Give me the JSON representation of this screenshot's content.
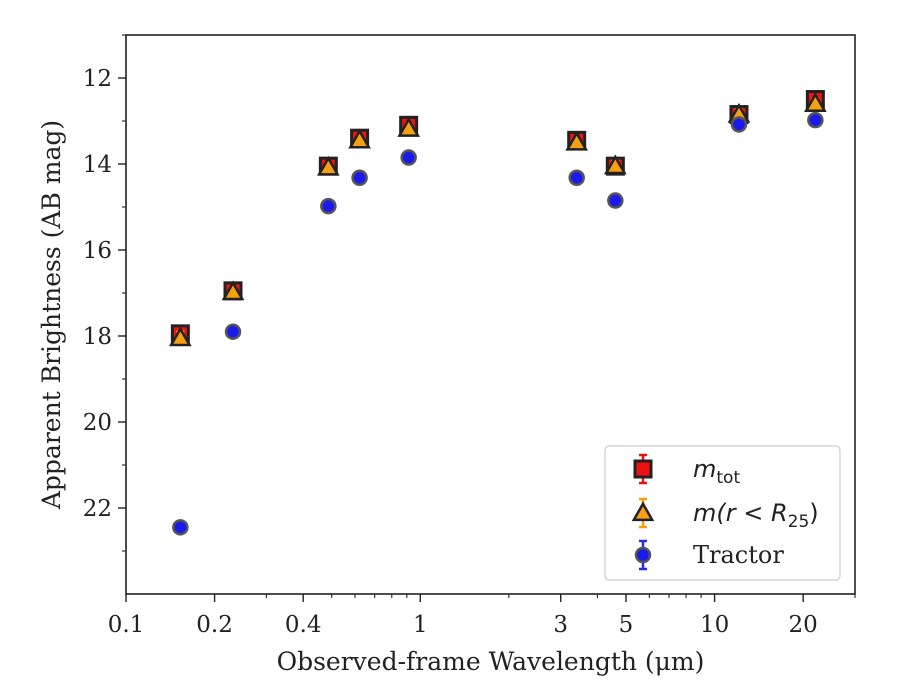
{
  "chart_data": {
    "type": "scatter",
    "xlabel": "Observed-frame Wavelength (μm)",
    "ylabel": "Apparent Brightness (AB mag)",
    "x_scale": "log",
    "y_inverted": true,
    "xlim": [
      0.1,
      30
    ],
    "ylim": [
      24,
      11
    ],
    "x_ticks": [
      {
        "value": 0.1,
        "label": "0.1"
      },
      {
        "value": 0.2,
        "label": "0.2"
      },
      {
        "value": 0.4,
        "label": "0.4"
      },
      {
        "value": 1,
        "label": "1"
      },
      {
        "value": 3,
        "label": "3"
      },
      {
        "value": 5,
        "label": "5"
      },
      {
        "value": 10,
        "label": "10"
      },
      {
        "value": 20,
        "label": "20"
      }
    ],
    "x_minor_ticks": [
      0.3,
      0.5,
      0.6,
      0.7,
      0.8,
      0.9,
      2,
      4,
      6,
      7,
      8,
      9,
      30
    ],
    "y_ticks": [
      {
        "value": 12,
        "label": "12"
      },
      {
        "value": 14,
        "label": "14"
      },
      {
        "value": 16,
        "label": "16"
      },
      {
        "value": 18,
        "label": "18"
      },
      {
        "value": 20,
        "label": "20"
      },
      {
        "value": 22,
        "label": "22"
      }
    ],
    "grid": false,
    "legend_position": "lower-right",
    "series": [
      {
        "name": "m_tot",
        "legend_main": "m",
        "legend_sub": "tot",
        "legend_rest": "",
        "marker": "square",
        "face_color": "#ee1111",
        "edge_color": "#222222",
        "error_color": "#ee1111",
        "x": [
          0.153,
          0.231,
          0.487,
          0.622,
          0.913,
          3.4,
          4.6,
          12.1,
          22.0
        ],
        "y": [
          17.95,
          16.95,
          14.05,
          13.4,
          13.1,
          13.45,
          14.05,
          12.85,
          12.5
        ],
        "yerr": [
          0.15,
          0.1,
          0.1,
          0.1,
          0.1,
          0.1,
          0.12,
          0.12,
          0.12
        ]
      },
      {
        "name": "m(r < R_25)",
        "legend_main": "m(r < R",
        "legend_sub": "25",
        "legend_rest": ")",
        "marker": "triangle",
        "face_color": "#f5a011",
        "edge_color": "#222222",
        "error_color": "#f5a011",
        "x": [
          0.153,
          0.231,
          0.487,
          0.622,
          0.913,
          3.4,
          4.6,
          12.1,
          22.0
        ],
        "y": [
          18.05,
          16.98,
          14.08,
          13.45,
          13.18,
          13.5,
          14.05,
          12.85,
          12.6
        ],
        "yerr": [
          0.15,
          0.1,
          0.1,
          0.1,
          0.1,
          0.1,
          0.12,
          0.12,
          0.12
        ]
      },
      {
        "name": "Tractor",
        "legend_main": "Tractor",
        "legend_sub": "",
        "legend_rest": "",
        "marker": "circle",
        "face_color": "#1a1aee",
        "edge_color": "#555555",
        "error_color": "#2a2aee",
        "x": [
          0.153,
          0.231,
          0.487,
          0.622,
          0.913,
          3.4,
          4.6,
          12.1,
          22.0
        ],
        "y": [
          22.45,
          17.9,
          14.98,
          14.32,
          13.85,
          14.32,
          14.85,
          13.08,
          12.98
        ],
        "yerr": [
          0.05,
          0.05,
          0.05,
          0.05,
          0.05,
          0.05,
          0.05,
          0.05,
          0.05
        ]
      }
    ]
  }
}
